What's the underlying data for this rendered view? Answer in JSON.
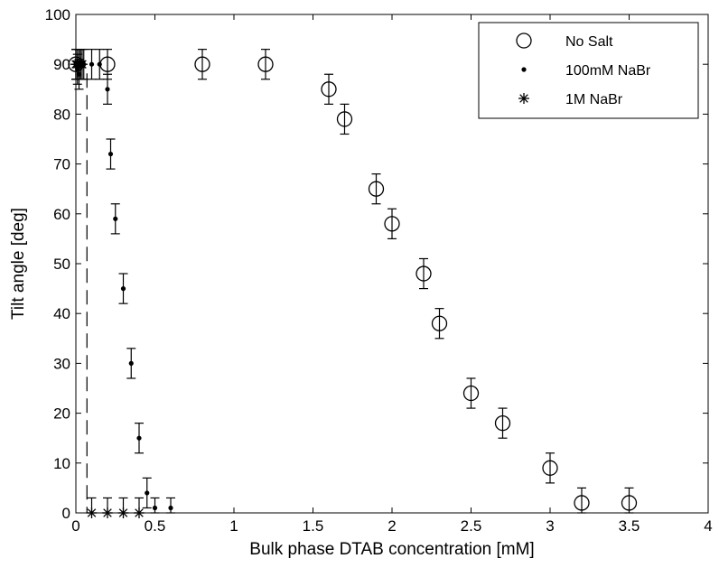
{
  "chart_data": {
    "type": "scatter",
    "xlabel": "Bulk phase DTAB concentration [mM]",
    "ylabel": "Tilt angle [deg]",
    "xlim": [
      0,
      4
    ],
    "ylim": [
      0,
      100
    ],
    "xticks": [
      "0",
      "0.5",
      "1",
      "1.5",
      "2",
      "2.5",
      "3",
      "3.5",
      "4"
    ],
    "yticks": [
      "0",
      "10",
      "20",
      "30",
      "40",
      "50",
      "60",
      "70",
      "80",
      "90",
      "100"
    ],
    "grid": false,
    "legend_position": "top-right",
    "dashed_vertical_line_x": 0.07,
    "series": [
      {
        "name": "No Salt",
        "marker": "open-circle",
        "color": "#000000",
        "points": [
          {
            "x": 0.0,
            "y": 90,
            "err": 3
          },
          {
            "x": 0.2,
            "y": 90,
            "err": 3
          },
          {
            "x": 0.8,
            "y": 90,
            "err": 3
          },
          {
            "x": 1.2,
            "y": 90,
            "err": 3
          },
          {
            "x": 1.6,
            "y": 85,
            "err": 3
          },
          {
            "x": 1.7,
            "y": 79,
            "err": 3
          },
          {
            "x": 1.9,
            "y": 65,
            "err": 3
          },
          {
            "x": 2.0,
            "y": 58,
            "err": 3
          },
          {
            "x": 2.2,
            "y": 48,
            "err": 3
          },
          {
            "x": 2.3,
            "y": 38,
            "err": 3
          },
          {
            "x": 2.5,
            "y": 24,
            "err": 3
          },
          {
            "x": 2.7,
            "y": 18,
            "err": 3
          },
          {
            "x": 3.0,
            "y": 9,
            "err": 3
          },
          {
            "x": 3.2,
            "y": 2,
            "err": 3
          },
          {
            "x": 3.5,
            "y": 2,
            "err": 3
          }
        ]
      },
      {
        "name": "100mM NaBr",
        "marker": "dot",
        "color": "#000000",
        "points": [
          {
            "x": 0.0,
            "y": 90,
            "err": 3
          },
          {
            "x": 0.01,
            "y": 89,
            "err": 3
          },
          {
            "x": 0.02,
            "y": 88,
            "err": 3
          },
          {
            "x": 0.03,
            "y": 90,
            "err": 3
          },
          {
            "x": 0.05,
            "y": 90,
            "err": 3
          },
          {
            "x": 0.1,
            "y": 90,
            "err": 3
          },
          {
            "x": 0.15,
            "y": 90,
            "err": 3
          },
          {
            "x": 0.2,
            "y": 85,
            "err": 3
          },
          {
            "x": 0.22,
            "y": 72,
            "err": 3
          },
          {
            "x": 0.25,
            "y": 59,
            "err": 3
          },
          {
            "x": 0.3,
            "y": 45,
            "err": 3
          },
          {
            "x": 0.35,
            "y": 30,
            "err": 3
          },
          {
            "x": 0.4,
            "y": 15,
            "err": 3
          },
          {
            "x": 0.45,
            "y": 4,
            "err": 3
          },
          {
            "x": 0.5,
            "y": 1,
            "err": 2
          },
          {
            "x": 0.6,
            "y": 1,
            "err": 2
          }
        ]
      },
      {
        "name": "1M NaBr",
        "marker": "asterisk",
        "color": "#000000",
        "points": [
          {
            "x": 0.0,
            "y": 90,
            "err": 3
          },
          {
            "x": 0.01,
            "y": 90,
            "err": 3
          },
          {
            "x": 0.02,
            "y": 90,
            "err": 3
          },
          {
            "x": 0.03,
            "y": 90,
            "err": 3
          },
          {
            "x": 0.04,
            "y": 90,
            "err": 3
          },
          {
            "x": 0.1,
            "y": 0,
            "err": 3
          },
          {
            "x": 0.2,
            "y": 0,
            "err": 3
          },
          {
            "x": 0.3,
            "y": 0,
            "err": 3
          },
          {
            "x": 0.4,
            "y": 0,
            "err": 3
          }
        ]
      }
    ]
  }
}
